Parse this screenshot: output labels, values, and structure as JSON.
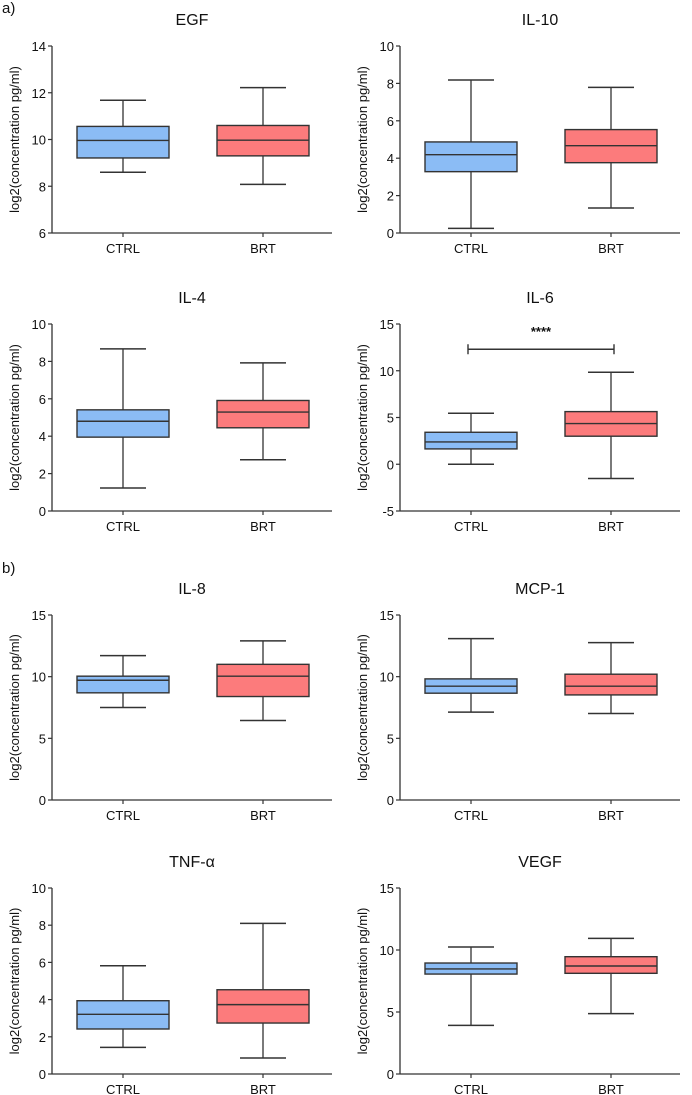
{
  "panel_labels": [
    "a)",
    "b)"
  ],
  "colors": {
    "CTRL": "#8bbcf5",
    "BRT": "#fc7b7c",
    "stroke": "#333333"
  },
  "chart_data": [
    {
      "type": "box",
      "title": "EGF",
      "ylabel": "log2(concentration pg/ml)",
      "categories": [
        "CTRL",
        "BRT"
      ],
      "ylim": [
        6,
        14
      ],
      "yticks": [
        6,
        8,
        10,
        12,
        14
      ],
      "boxes": [
        {
          "min": 8.6,
          "q1": 9.21,
          "median": 9.96,
          "q3": 10.56,
          "max": 11.68
        },
        {
          "min": 8.08,
          "q1": 9.3,
          "median": 9.97,
          "q3": 10.6,
          "max": 12.22
        }
      ]
    },
    {
      "type": "box",
      "title": "IL-10",
      "ylabel": "log2(concentration pg/ml)",
      "categories": [
        "CTRL",
        "BRT"
      ],
      "ylim": [
        0,
        10
      ],
      "yticks": [
        0,
        2,
        4,
        6,
        8,
        10
      ],
      "boxes": [
        {
          "min": 0.25,
          "q1": 3.28,
          "median": 4.19,
          "q3": 4.87,
          "max": 8.18
        },
        {
          "min": 1.34,
          "q1": 3.76,
          "median": 4.67,
          "q3": 5.53,
          "max": 7.79
        }
      ]
    },
    {
      "type": "box",
      "title": "IL-4",
      "ylabel": "log2(concentration pg/ml)",
      "categories": [
        "CTRL",
        "BRT"
      ],
      "ylim": [
        0,
        10
      ],
      "yticks": [
        0,
        2,
        4,
        6,
        8,
        10
      ],
      "boxes": [
        {
          "min": 1.23,
          "q1": 3.95,
          "median": 4.8,
          "q3": 5.41,
          "max": 8.67
        },
        {
          "min": 2.74,
          "q1": 4.45,
          "median": 5.29,
          "q3": 5.91,
          "max": 7.92
        }
      ]
    },
    {
      "type": "box",
      "title": "IL-6",
      "ylabel": "log2(concentration pg/ml)",
      "categories": [
        "CTRL",
        "BRT"
      ],
      "ylim": [
        -5,
        15
      ],
      "yticks": [
        -5,
        0,
        5,
        10,
        15
      ],
      "boxes": [
        {
          "min": 0,
          "q1": 1.64,
          "median": 2.39,
          "q3": 3.42,
          "max": 5.45
        },
        {
          "min": -1.53,
          "q1": 3.0,
          "median": 4.35,
          "q3": 5.63,
          "max": 9.84
        }
      ],
      "significance": {
        "label": "****",
        "y": 12.3
      }
    },
    {
      "type": "box",
      "title": "IL-8",
      "ylabel": "log2(concentration pg/ml)",
      "categories": [
        "CTRL",
        "BRT"
      ],
      "ylim": [
        0,
        15
      ],
      "yticks": [
        0,
        5,
        10,
        15
      ],
      "boxes": [
        {
          "min": 7.5,
          "q1": 8.69,
          "median": 9.71,
          "q3": 10.04,
          "max": 11.71
        },
        {
          "min": 6.45,
          "q1": 8.39,
          "median": 10.04,
          "q3": 11.0,
          "max": 12.9
        }
      ]
    },
    {
      "type": "box",
      "title": "MCP-1",
      "ylabel": "log2(concentration pg/ml)",
      "categories": [
        "CTRL",
        "BRT"
      ],
      "ylim": [
        0,
        15
      ],
      "yticks": [
        0,
        5,
        10,
        15
      ],
      "boxes": [
        {
          "min": 7.12,
          "q1": 8.66,
          "median": 9.23,
          "q3": 9.82,
          "max": 13.08
        },
        {
          "min": 7.01,
          "q1": 8.52,
          "median": 9.23,
          "q3": 10.2,
          "max": 12.76
        }
      ]
    },
    {
      "type": "box",
      "title": "TNF-α",
      "ylabel": "log2(concentration pg/ml)",
      "categories": [
        "CTRL",
        "BRT"
      ],
      "ylim": [
        0,
        10
      ],
      "yticks": [
        0,
        2,
        4,
        6,
        8,
        10
      ],
      "boxes": [
        {
          "min": 1.43,
          "q1": 2.42,
          "median": 3.21,
          "q3": 3.94,
          "max": 5.82
        },
        {
          "min": 0.86,
          "q1": 2.74,
          "median": 3.73,
          "q3": 4.53,
          "max": 8.1
        }
      ]
    },
    {
      "type": "box",
      "title": "VEGF",
      "ylabel": "log2(concentration pg/ml)",
      "categories": [
        "CTRL",
        "BRT"
      ],
      "ylim": [
        0,
        15
      ],
      "yticks": [
        0,
        5,
        10,
        15
      ],
      "boxes": [
        {
          "min": 3.92,
          "q1": 8.06,
          "median": 8.47,
          "q3": 8.95,
          "max": 10.24
        },
        {
          "min": 4.87,
          "q1": 8.12,
          "median": 8.71,
          "q3": 9.46,
          "max": 10.94
        }
      ]
    }
  ]
}
